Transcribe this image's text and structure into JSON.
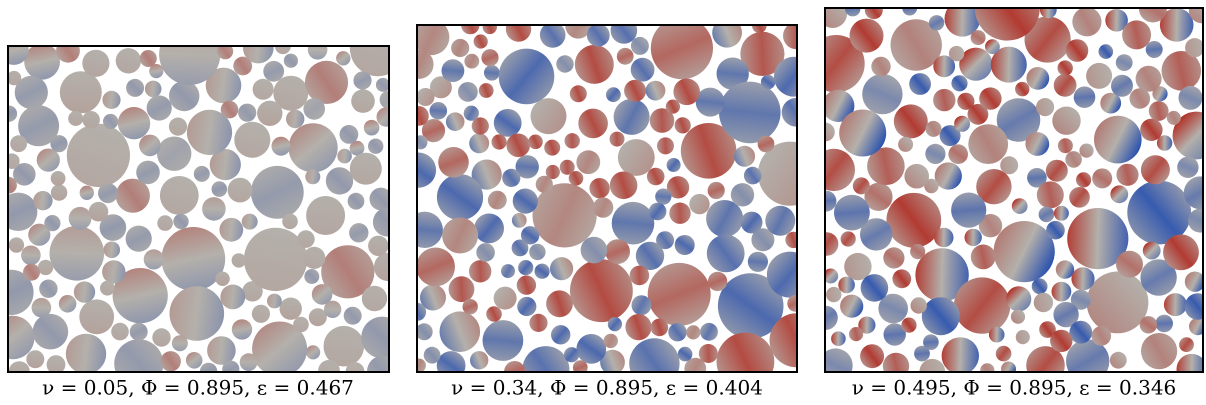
{
  "figure": {
    "panels": [
      {
        "caption": "ν = 0.05, Φ = 0.895, ε = 0.467"
      },
      {
        "caption": "ν = 0.34, Φ = 0.895, ε = 0.404"
      },
      {
        "caption": "ν = 0.495, Φ = 0.895, ε = 0.346"
      }
    ]
  }
}
